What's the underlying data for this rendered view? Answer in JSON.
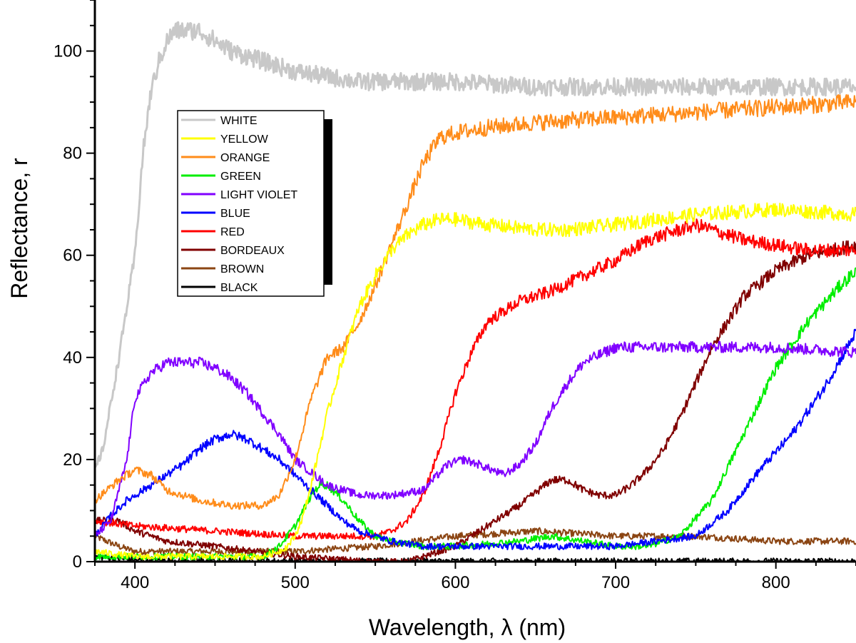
{
  "chart_data": {
    "type": "line",
    "title": "",
    "xlabel": "Wavelength, λ (nm)",
    "ylabel": "Reflectance, r",
    "xlim": [
      375,
      850
    ],
    "ylim": [
      0,
      110
    ],
    "xticks": [
      400,
      500,
      600,
      700,
      800
    ],
    "yticks": [
      0,
      20,
      40,
      60,
      80,
      100
    ],
    "xtick_labels": [
      "400",
      "500",
      "600",
      "700",
      "800"
    ],
    "ytick_labels": [
      "0",
      "20",
      "40",
      "60",
      "80",
      "100"
    ],
    "grid": false,
    "legend_position": "upper-left",
    "series": [
      {
        "name": "WHITE",
        "color": "#c8c8c8",
        "x": [
          375,
          380,
          390,
          400,
          405,
          410,
          415,
          420,
          425,
          430,
          440,
          450,
          460,
          470,
          480,
          500,
          520,
          540,
          560,
          580,
          600,
          650,
          700,
          750,
          800,
          850
        ],
        "y": [
          18,
          22,
          40,
          60,
          80,
          92,
          98,
          102,
          104,
          104,
          104,
          102,
          100,
          99,
          98,
          96,
          95,
          94,
          94,
          94,
          94,
          93,
          93,
          93,
          93,
          93
        ]
      },
      {
        "name": "YELLOW",
        "color": "#ffff00",
        "x": [
          375,
          400,
          450,
          480,
          490,
          495,
          500,
          505,
          510,
          515,
          520,
          530,
          540,
          550,
          560,
          570,
          580,
          590,
          600,
          620,
          650,
          670,
          700,
          750,
          800,
          850
        ],
        "y": [
          2,
          1,
          1,
          1,
          2,
          3,
          5,
          9,
          15,
          22,
          29,
          40,
          50,
          56,
          61,
          64,
          66,
          67,
          67,
          66,
          65,
          65,
          66,
          68,
          69,
          68
        ]
      },
      {
        "name": "ORANGE",
        "color": "#ff8c1a",
        "x": [
          375,
          390,
          400,
          410,
          420,
          440,
          460,
          480,
          490,
          500,
          510,
          520,
          530,
          540,
          550,
          560,
          570,
          580,
          590,
          600,
          620,
          650,
          700,
          750,
          800,
          850
        ],
        "y": [
          12,
          16,
          18,
          17,
          14,
          12,
          11,
          11,
          13,
          20,
          32,
          40,
          42,
          47,
          54,
          62,
          70,
          78,
          83,
          84,
          85,
          86,
          87,
          88,
          89,
          90
        ]
      },
      {
        "name": "GREEN",
        "color": "#00ee00",
        "x": [
          375,
          400,
          450,
          480,
          490,
          500,
          510,
          515,
          520,
          530,
          540,
          550,
          560,
          580,
          600,
          640,
          660,
          680,
          700,
          720,
          740,
          760,
          780,
          800,
          820,
          840,
          850
        ],
        "y": [
          1,
          1,
          1,
          1,
          3,
          7,
          13,
          15,
          15,
          12,
          8,
          5,
          4,
          3,
          3,
          4,
          5,
          4,
          3,
          3,
          5,
          12,
          25,
          38,
          47,
          54,
          57
        ]
      },
      {
        "name": "LIGHT VIOLET",
        "color": "#8000ff",
        "x": [
          375,
          385,
          395,
          400,
          410,
          420,
          430,
          440,
          450,
          460,
          470,
          480,
          490,
          500,
          520,
          540,
          560,
          580,
          595,
          605,
          615,
          630,
          640,
          650,
          660,
          670,
          680,
          700,
          750,
          800,
          850
        ],
        "y": [
          5,
          8,
          20,
          32,
          37,
          39,
          39,
          39,
          38,
          36,
          33,
          29,
          25,
          20,
          15,
          13,
          13,
          14,
          19,
          20,
          19,
          17,
          19,
          23,
          30,
          35,
          39,
          42,
          42,
          42,
          41
        ]
      },
      {
        "name": "BLUE",
        "color": "#0000ff",
        "x": [
          375,
          385,
          395,
          400,
          410,
          420,
          430,
          440,
          450,
          460,
          470,
          480,
          490,
          500,
          510,
          520,
          530,
          540,
          560,
          580,
          600,
          650,
          700,
          750,
          770,
          790,
          810,
          830,
          850
        ],
        "y": [
          5,
          9,
          12,
          13,
          15,
          17,
          19,
          22,
          24,
          25,
          24,
          22,
          20,
          17,
          14,
          11,
          8,
          6,
          4,
          3,
          3,
          3,
          3,
          5,
          10,
          18,
          25,
          34,
          45
        ]
      },
      {
        "name": "RED",
        "color": "#ff0000",
        "x": [
          375,
          400,
          450,
          500,
          550,
          560,
          570,
          580,
          590,
          600,
          610,
          620,
          640,
          660,
          680,
          700,
          720,
          740,
          750,
          760,
          780,
          800,
          820,
          850
        ],
        "y": [
          8,
          7,
          6,
          5,
          5,
          6,
          8,
          13,
          22,
          33,
          41,
          47,
          51,
          53,
          56,
          59,
          63,
          65,
          66,
          65,
          63,
          62,
          61,
          61
        ]
      },
      {
        "name": "BORDEAUX",
        "color": "#800000",
        "x": [
          375,
          390,
          400,
          420,
          450,
          500,
          550,
          570,
          580,
          600,
          620,
          640,
          660,
          670,
          680,
          690,
          700,
          710,
          720,
          730,
          740,
          750,
          760,
          780,
          800,
          820,
          850
        ],
        "y": [
          8,
          8,
          6,
          4,
          3,
          1,
          0,
          0,
          1,
          3,
          7,
          11,
          16,
          16,
          14,
          13,
          13,
          15,
          18,
          22,
          28,
          35,
          42,
          52,
          57,
          60,
          62
        ]
      },
      {
        "name": "BROWN",
        "color": "#8b4513",
        "x": [
          375,
          390,
          400,
          450,
          500,
          550,
          600,
          650,
          700,
          750,
          800,
          850
        ],
        "y": [
          5,
          3,
          2,
          2,
          2,
          3,
          5,
          6,
          5,
          5,
          4,
          4
        ]
      },
      {
        "name": "BLACK",
        "color": "#000000",
        "x": [
          375,
          400,
          500,
          600,
          700,
          800,
          850
        ],
        "y": [
          1,
          0.3,
          0.1,
          0.1,
          0.1,
          0.1,
          0.1
        ]
      }
    ]
  }
}
